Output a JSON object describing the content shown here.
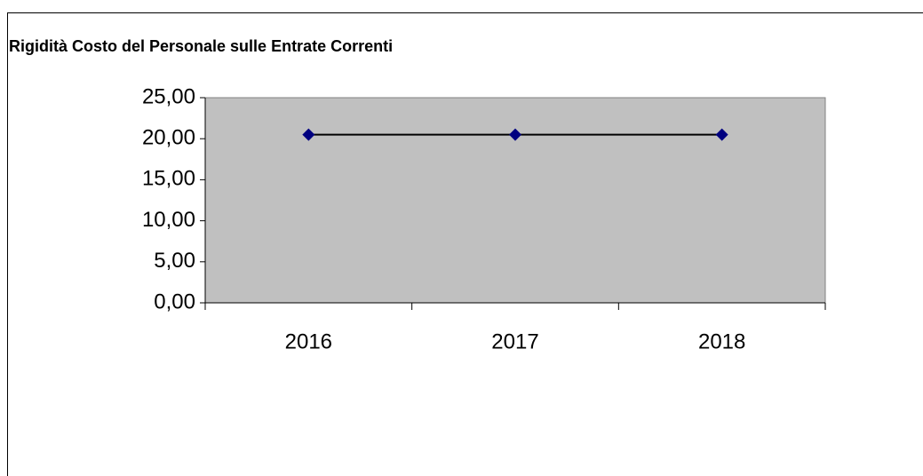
{
  "chart_data": {
    "type": "line",
    "title": "Rigidità Costo del Personale sulle Entrate Correnti",
    "categories": [
      "2016",
      "2017",
      "2018"
    ],
    "series": [
      {
        "color": "#000080",
        "values": [
          20.5,
          20.5,
          20.5
        ]
      }
    ],
    "ylim": [
      0,
      25
    ],
    "yticks": [
      {
        "value": 0,
        "label": "0,00"
      },
      {
        "value": 5,
        "label": "5,00"
      },
      {
        "value": 10,
        "label": "10,00"
      },
      {
        "value": 15,
        "label": "15,00"
      },
      {
        "value": 20,
        "label": "20,00"
      },
      {
        "value": 25,
        "label": "25,00"
      }
    ],
    "plot_background": "#c0c0c0",
    "line_color": "#000000"
  }
}
